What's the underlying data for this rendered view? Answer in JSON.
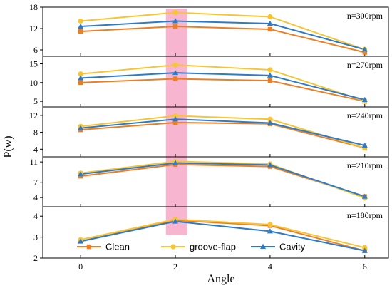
{
  "chart_data": {
    "type": "line",
    "xlabel": "Angle",
    "ylabel": "P(w)",
    "x": [
      0,
      2,
      4,
      6
    ],
    "x_ticks": [
      "0",
      "2",
      "4",
      "6"
    ],
    "xlim": [
      -0.8,
      6.5
    ],
    "highlight_x_range": [
      1.8,
      2.25
    ],
    "colors": {
      "highlight": "#f7a8c8"
    },
    "legend": {
      "placement": "bottom-center",
      "entries": [
        {
          "name": "Clean",
          "color": "#ec7f24",
          "marker": "square"
        },
        {
          "name": "groove-flap",
          "color": "#f7c534",
          "marker": "circle"
        },
        {
          "name": "Cavity",
          "color": "#2c7bcb",
          "marker": "triangle"
        }
      ]
    },
    "panels": [
      {
        "label": "n=300rpm",
        "ylim": [
          4.2,
          18
        ],
        "yticks": [
          6,
          12,
          18
        ],
        "ytick_labels": [
          "6",
          "12",
          "18"
        ],
        "series": [
          {
            "name": "Clean",
            "values": [
              11.2,
              12.6,
              11.8,
              5.3
            ]
          },
          {
            "name": "groove-flap",
            "values": [
              14.1,
              16.5,
              15.3,
              6.1
            ]
          },
          {
            "name": "Cavity",
            "values": [
              12.6,
              14.1,
              13.4,
              6.1
            ]
          }
        ]
      },
      {
        "label": "n=270rpm",
        "ylim": [
          3.5,
          17
        ],
        "yticks": [
          5,
          10,
          15
        ],
        "ytick_labels": [
          "5",
          "10",
          "15"
        ],
        "series": [
          {
            "name": "Clean",
            "values": [
              10.0,
              11.0,
              10.5,
              5.0
            ]
          },
          {
            "name": "groove-flap",
            "values": [
              12.3,
              14.7,
              13.4,
              5.1
            ]
          },
          {
            "name": "Cavity",
            "values": [
              11.2,
              12.6,
              11.9,
              5.4
            ]
          }
        ]
      },
      {
        "label": "n=240rpm",
        "ylim": [
          2.2,
          14
        ],
        "yticks": [
          4,
          8,
          12
        ],
        "ytick_labels": [
          "4",
          "8",
          "12"
        ],
        "series": [
          {
            "name": "Clean",
            "values": [
              8.6,
              10.3,
              10.0,
              4.3
            ]
          },
          {
            "name": "groove-flap",
            "values": [
              9.4,
              11.9,
              11.1,
              4.3
            ]
          },
          {
            "name": "Cavity",
            "values": [
              9.0,
              11.1,
              10.2,
              4.9
            ]
          }
        ]
      },
      {
        "label": "n=210rpm",
        "ylim": [
          2.2,
          12
        ],
        "yticks": [
          4,
          7,
          11
        ],
        "ytick_labels": [
          "4",
          "7",
          "11"
        ],
        "series": [
          {
            "name": "Clean",
            "values": [
              8.2,
              10.5,
              10.1,
              4.2
            ]
          },
          {
            "name": "groove-flap",
            "values": [
              8.8,
              11.1,
              10.6,
              3.9
            ]
          },
          {
            "name": "Cavity",
            "values": [
              8.6,
              10.8,
              10.4,
              4.2
            ]
          }
        ]
      },
      {
        "label": "n=180rpm",
        "ylim": [
          2,
          4.45
        ],
        "yticks": [
          2,
          3,
          4
        ],
        "ytick_labels": [
          "2",
          "3",
          "4"
        ],
        "series": [
          {
            "name": "Clean",
            "values": [
              2.8,
              3.8,
              3.55,
              2.35
            ]
          },
          {
            "name": "groove-flap",
            "values": [
              2.88,
              3.85,
              3.6,
              2.5
            ]
          },
          {
            "name": "Cavity",
            "values": [
              2.8,
              3.75,
              3.28,
              2.35
            ]
          }
        ]
      }
    ]
  }
}
